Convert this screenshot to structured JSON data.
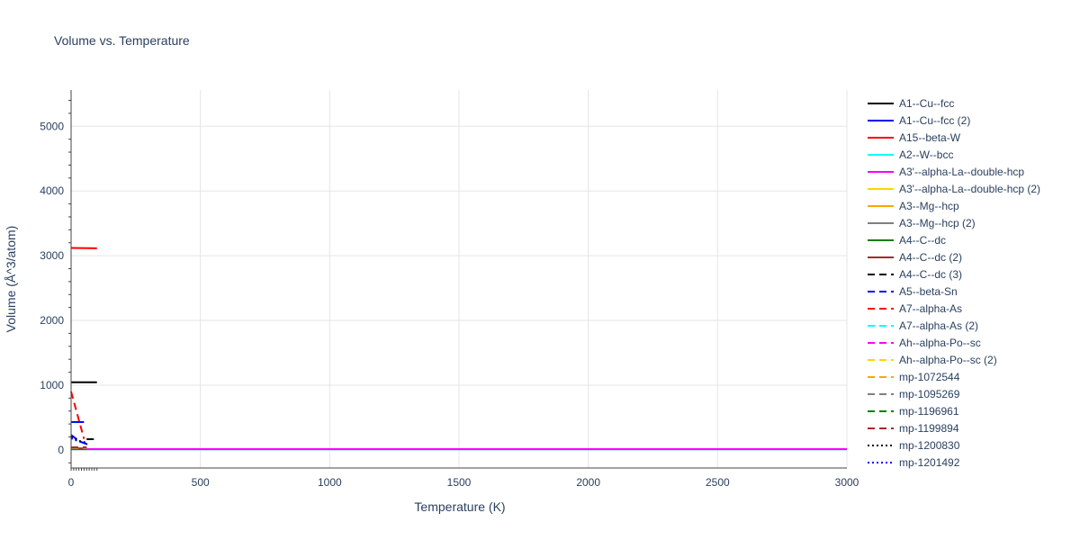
{
  "chart_data": {
    "type": "line",
    "title": "Volume vs. Temperature",
    "xlabel": "Temperature (K)",
    "ylabel": "Volume (Å^3/atom)",
    "xlim": [
      0,
      3000
    ],
    "ylim": [
      -280,
      5560
    ],
    "x_ticks": [
      0,
      500,
      1000,
      1500,
      2000,
      2500,
      3000
    ],
    "y_ticks": [
      0,
      1000,
      2000,
      3000,
      4000,
      5000
    ],
    "grid": true,
    "legend_position": "right",
    "series": [
      {
        "name": "A1--Cu--fcc",
        "color": "#000000",
        "dash": "solid",
        "x": [
          0,
          100
        ],
        "y": [
          1045,
          1045
        ]
      },
      {
        "name": "A1--Cu--fcc (2)",
        "color": "#0000ff",
        "dash": "solid",
        "x": [
          0,
          50
        ],
        "y": [
          430,
          430
        ]
      },
      {
        "name": "A15--beta-W",
        "color": "#ff0000",
        "dash": "solid",
        "x": [
          0,
          100
        ],
        "y": [
          3120,
          3115
        ]
      },
      {
        "name": "A2--W--bcc",
        "color": "#00ffff",
        "dash": "solid",
        "x": [
          0,
          3000
        ],
        "y": [
          10,
          10
        ]
      },
      {
        "name": "A3'--alpha-La--double-hcp",
        "color": "#ff00ff",
        "dash": "solid",
        "x": [
          0,
          3000
        ],
        "y": [
          12,
          12
        ]
      },
      {
        "name": "A3'--alpha-La--double-hcp (2)",
        "color": "#ffd700",
        "dash": "solid",
        "x": [
          0,
          60
        ],
        "y": [
          20,
          20
        ]
      },
      {
        "name": "A3--Mg--hcp",
        "color": "#ffa500",
        "dash": "solid",
        "x": [
          0,
          60
        ],
        "y": [
          22,
          22
        ]
      },
      {
        "name": "A3--Mg--hcp (2)",
        "color": "#808080",
        "dash": "solid",
        "x": [
          0,
          60
        ],
        "y": [
          24,
          24
        ]
      },
      {
        "name": "A4--C--dc",
        "color": "#008000",
        "dash": "solid",
        "x": [
          0,
          60
        ],
        "y": [
          15,
          15
        ]
      },
      {
        "name": "A4--C--dc (2)",
        "color": "#a52a2a",
        "dash": "solid",
        "x": [
          0,
          60
        ],
        "y": [
          18,
          18
        ]
      },
      {
        "name": "A4--C--dc (3)",
        "color": "#000000",
        "dash": "dash",
        "x": [
          60,
          100
        ],
        "y": [
          165,
          165
        ]
      },
      {
        "name": "A5--beta-Sn",
        "color": "#0000ff",
        "dash": "dash",
        "x": [
          0,
          20,
          40,
          60,
          80
        ],
        "y": [
          230,
          170,
          120,
          90,
          80
        ]
      },
      {
        "name": "A7--alpha-As",
        "color": "#ff0000",
        "dash": "dash",
        "x": [
          0,
          50
        ],
        "y": [
          900,
          170
        ]
      },
      {
        "name": "A7--alpha-As (2)",
        "color": "#00ffff",
        "dash": "dash",
        "x": [
          0,
          60
        ],
        "y": [
          30,
          30
        ]
      },
      {
        "name": "Ah--alpha-Po--sc",
        "color": "#ff00ff",
        "dash": "dash",
        "x": [
          0,
          60
        ],
        "y": [
          26,
          26
        ]
      },
      {
        "name": "Ah--alpha-Po--sc (2)",
        "color": "#ffd700",
        "dash": "dash",
        "x": [
          0,
          60
        ],
        "y": [
          28,
          28
        ]
      },
      {
        "name": "mp-1072544",
        "color": "#ffa500",
        "dash": "dash",
        "x": [
          0,
          60
        ],
        "y": [
          32,
          32
        ]
      },
      {
        "name": "mp-1095269",
        "color": "#808080",
        "dash": "dash",
        "x": [
          0,
          60
        ],
        "y": [
          34,
          34
        ]
      },
      {
        "name": "mp-1196961",
        "color": "#008000",
        "dash": "dash",
        "x": [
          0,
          60
        ],
        "y": [
          36,
          36
        ]
      },
      {
        "name": "mp-1199894",
        "color": "#a52a2a",
        "dash": "dash",
        "x": [
          0,
          60
        ],
        "y": [
          38,
          38
        ]
      },
      {
        "name": "mp-1200830",
        "color": "#000000",
        "dash": "dot",
        "x": [
          0,
          30,
          60
        ],
        "y": [
          200,
          140,
          110
        ]
      },
      {
        "name": "mp-1201492",
        "color": "#0000ff",
        "dash": "dot",
        "x": [
          0,
          30,
          60
        ],
        "y": [
          180,
          130,
          100
        ]
      }
    ]
  }
}
